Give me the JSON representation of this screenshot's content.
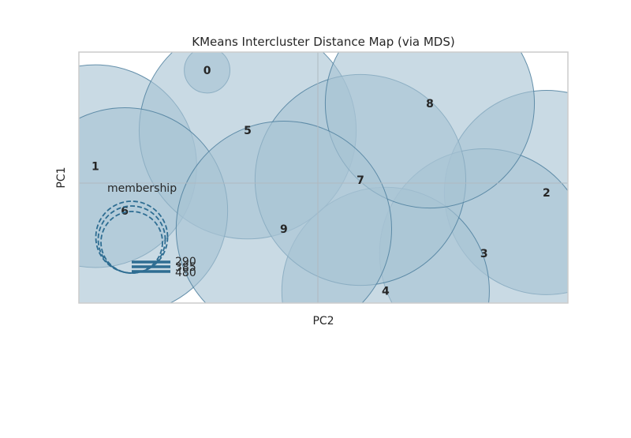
{
  "chart_data": {
    "type": "scatter",
    "title": "KMeans Intercluster Distance Map (via MDS)",
    "xlabel": "PC2",
    "ylabel": "PC1",
    "grid": true,
    "xlim": [
      -1,
      1
    ],
    "ylim": [
      -1,
      1
    ],
    "colors": {
      "bubble_fill": "#a8c3d3",
      "bubble_stroke": "#4e7f9e",
      "axis_frame": "#cccccc",
      "origin_lines": "#b0b9c0",
      "legend_stroke": "#2e6d92"
    },
    "clusters": [
      {
        "label": "0",
        "x": -0.453,
        "y": 0.9,
        "size": 31
      },
      {
        "label": "1",
        "x": -0.91,
        "y": 0.135,
        "size": 610
      },
      {
        "label": "2",
        "x": 0.935,
        "y": -0.075,
        "size": 620
      },
      {
        "label": "3",
        "x": 0.68,
        "y": -0.56,
        "size": 650
      },
      {
        "label": "4",
        "x": 0.277,
        "y": -0.86,
        "size": 640
      },
      {
        "label": "5",
        "x": -0.287,
        "y": 0.42,
        "size": 700
      },
      {
        "label": "6",
        "x": -0.79,
        "y": -0.22,
        "size": 630
      },
      {
        "label": "7",
        "x": 0.174,
        "y": 0.025,
        "size": 660
      },
      {
        "label": "8",
        "x": 0.458,
        "y": 0.635,
        "size": 650
      },
      {
        "label": "9",
        "x": -0.139,
        "y": -0.365,
        "size": 690
      }
    ],
    "legend": {
      "title": "membership",
      "sizes": [
        "290",
        "385",
        "480"
      ],
      "placement": "lower-left"
    }
  }
}
